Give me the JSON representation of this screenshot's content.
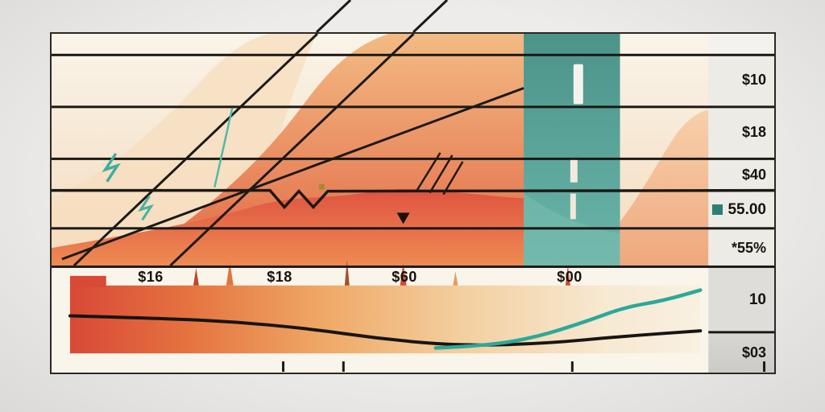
{
  "chart_data": {
    "type": "area",
    "x_axis": {
      "ticks": [
        "$16",
        "$18",
        "$60",
        "$00"
      ]
    },
    "right_panel": {
      "rows": [
        {
          "label": "$10"
        },
        {
          "label": "$18"
        },
        {
          "label": "$40"
        },
        {
          "label": "55.00",
          "bullet": "teal-square"
        },
        {
          "label": "*55%"
        },
        {
          "label": "10"
        },
        {
          "label": "$03"
        }
      ]
    },
    "series": [
      {
        "name": "dark-baseline",
        "color": "#171513",
        "x_pct": [
          0,
          12,
          25,
          38,
          50,
          62,
          75,
          88,
          100
        ],
        "y_pct": [
          47,
          49,
          52,
          59,
          69,
          75,
          73,
          66,
          61
        ]
      },
      {
        "name": "teal-trend",
        "color": "#2ba99a",
        "x_pct": [
          58,
          66,
          74,
          82,
          88,
          94,
          100
        ],
        "y_pct": [
          77,
          75,
          67,
          52,
          39,
          33,
          23
        ]
      }
    ],
    "layout_hints": {
      "vertical_band": "teal",
      "gridlines": "horizontal-black",
      "legend": "none"
    }
  },
  "colors": {
    "accent_teal": "#2ba99a",
    "band_teal": "#4c948a",
    "accent_red": "#df5340",
    "accent_orange": "#f2b67b",
    "line_black": "#1b1915",
    "panel_gray": "#e5e3df",
    "bullet_teal": "#2b8074"
  }
}
